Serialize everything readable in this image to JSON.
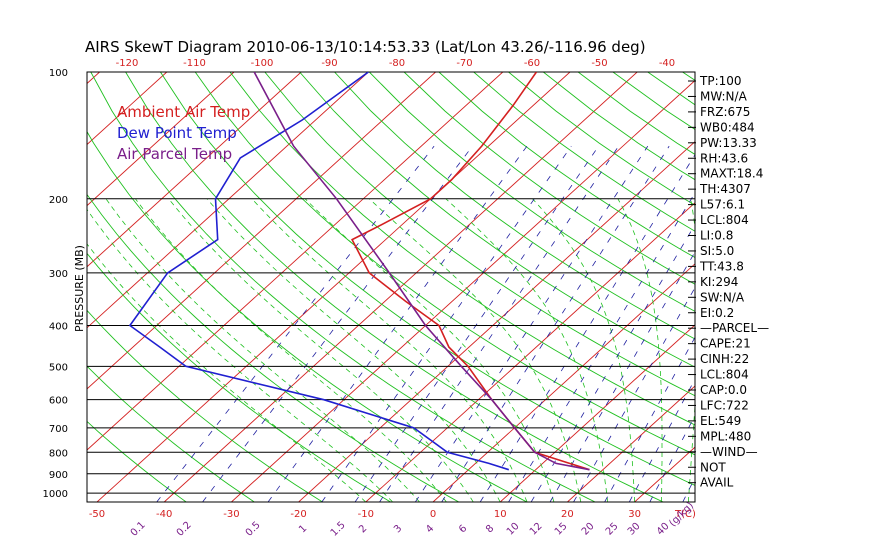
{
  "chart_data": {
    "type": "line",
    "title": "AIRS SkewT Diagram 2010-06-13/10:14:53.33 (Lat/Lon 43.26/-116.96 deg)",
    "ylabel": "PRESSURE (MB)",
    "xlabel_bottom_unit": "T(C)",
    "mixing_ratio_unit": "(g/kg)",
    "y_scale": "log",
    "ylim": [
      1050,
      100
    ],
    "pressure_ticks": [
      100,
      200,
      300,
      400,
      500,
      600,
      700,
      800,
      900,
      1000
    ],
    "top_ticks": [
      -120,
      -110,
      -100,
      -90,
      -80,
      -70,
      -60,
      -50,
      -40
    ],
    "bottom_ticks": [
      -50,
      -40,
      -30,
      -20,
      -10,
      0,
      10,
      20,
      30
    ],
    "mixing_ratio_ticks": [
      "0.1",
      "0.2",
      "0.5",
      "1",
      "1.5",
      "2",
      "3",
      "4",
      "6",
      "8",
      "10",
      "12",
      "15",
      "20",
      "25",
      "30",
      "40"
    ],
    "legend": [
      {
        "label": "Ambient Air Temp",
        "color": "#d42020"
      },
      {
        "label": "Dew Point Temp",
        "color": "#2020d0"
      },
      {
        "label": "Air Parcel Temp",
        "color": "#7a1f8a"
      }
    ],
    "series": [
      {
        "name": "Ambient Air Temp",
        "color": "#d42020",
        "points": [
          [
            100,
            -55
          ],
          [
            120,
            -53
          ],
          [
            150,
            -51
          ],
          [
            180,
            -50
          ],
          [
            200,
            -50
          ],
          [
            230,
            -53
          ],
          [
            250,
            -55
          ],
          [
            300,
            -47
          ],
          [
            350,
            -37
          ],
          [
            400,
            -28
          ],
          [
            450,
            -23
          ],
          [
            500,
            -17
          ],
          [
            600,
            -8
          ],
          [
            700,
            0
          ],
          [
            800,
            7
          ],
          [
            850,
            14
          ],
          [
            880,
            18
          ]
        ]
      },
      {
        "name": "Dew Point Temp",
        "color": "#2020d0",
        "points": [
          [
            100,
            -80
          ],
          [
            130,
            -82
          ],
          [
            160,
            -85
          ],
          [
            200,
            -82
          ],
          [
            250,
            -75
          ],
          [
            300,
            -77
          ],
          [
            400,
            -74
          ],
          [
            450,
            -66
          ],
          [
            500,
            -59
          ],
          [
            600,
            -33
          ],
          [
            700,
            -15
          ],
          [
            800,
            -6
          ],
          [
            850,
            2
          ],
          [
            880,
            6
          ]
        ]
      },
      {
        "name": "Air Parcel Temp",
        "color": "#7a1f8a",
        "points": [
          [
            100,
            -97
          ],
          [
            150,
            -79
          ],
          [
            200,
            -64
          ],
          [
            300,
            -44
          ],
          [
            400,
            -30
          ],
          [
            500,
            -18
          ],
          [
            600,
            -8
          ],
          [
            700,
            0
          ],
          [
            800,
            7
          ],
          [
            850,
            12
          ],
          [
            880,
            18
          ]
        ]
      }
    ],
    "indices": [
      "TP:100",
      "MW:N/A",
      "FRZ:675",
      "WB0:484",
      "PW:13.33",
      "RH:43.6",
      "MAXT:18.4",
      "TH:4307",
      "L57:6.1",
      "LCL:804",
      "LI:0.8",
      "SI:5.0",
      "TT:43.8",
      "KI:294",
      "SW:N/A",
      "EI:0.2",
      "—PARCEL—",
      "CAPE:21",
      "CINH:22",
      "LCL:804",
      "CAP:0.0",
      "LFC:722",
      "EL:549",
      "MPL:480",
      "—WIND—",
      "NOT",
      "AVAIL"
    ],
    "colors": {
      "isotherm": "#d42020",
      "dry_adiabat": "#20c020",
      "moist_adiabat": "#20c020",
      "mixing_ratio": "#2020a0",
      "isobar": "#000000"
    }
  }
}
